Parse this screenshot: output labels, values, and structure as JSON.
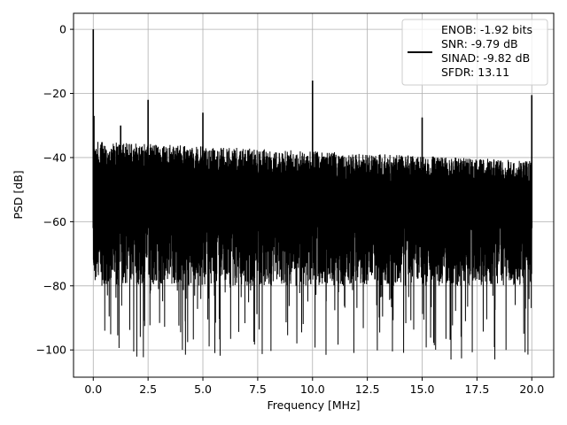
{
  "chart_data": {
    "type": "line",
    "xlabel": "Frequency [MHz]",
    "ylabel": "PSD [dB]",
    "xlim": [
      -0.9,
      21.0
    ],
    "ylim": [
      -108.5,
      5.0
    ],
    "xticks": [
      0.0,
      2.5,
      5.0,
      7.5,
      10.0,
      12.5,
      15.0,
      17.5,
      20.0
    ],
    "xtick_labels": [
      "0.0",
      "2.5",
      "5.0",
      "7.5",
      "10.0",
      "12.5",
      "15.0",
      "17.5",
      "20.0"
    ],
    "yticks": [
      0,
      -20,
      -40,
      -60,
      -80,
      -100
    ],
    "ytick_labels": [
      "0",
      "−20",
      "−40",
      "−60",
      "−80",
      "−100"
    ],
    "grid": true,
    "legend_position": "top-right",
    "series": [
      {
        "color": "#000000",
        "noise_floor": {
          "x_range": [
            0.0,
            20.0
          ],
          "upper_dB_start": -35,
          "upper_dB_end": -41,
          "lower_dB_min": -103
        },
        "spurs": [
          {
            "x": 0.0,
            "y": 0.0
          },
          {
            "x": 0.03,
            "y": -27
          },
          {
            "x": 1.25,
            "y": -30
          },
          {
            "x": 2.5,
            "y": -22
          },
          {
            "x": 5.0,
            "y": -26
          },
          {
            "x": 10.0,
            "y": -16
          },
          {
            "x": 15.0,
            "y": -27.5
          },
          {
            "x": 20.0,
            "y": -20.5
          }
        ]
      }
    ],
    "legend_lines": [
      "ENOB: -1.92 bits",
      "SNR: -9.79 dB",
      "SINAD: -9.82 dB",
      "SFDR: 13.11"
    ]
  }
}
